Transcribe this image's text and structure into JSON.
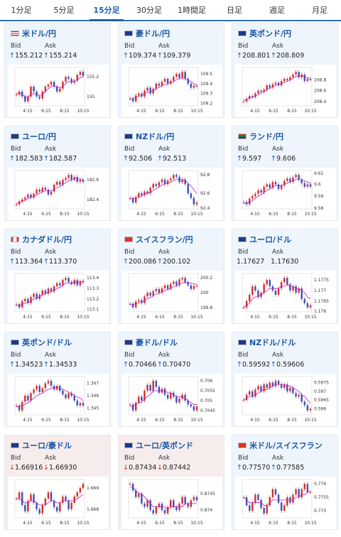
{
  "tabs": [
    {
      "label": "1分足",
      "active": false
    },
    {
      "label": "5分足",
      "active": false
    },
    {
      "label": "15分足",
      "active": true
    },
    {
      "label": "30分足",
      "active": false
    },
    {
      "label": "1時間足",
      "active": false
    },
    {
      "label": "日足",
      "active": false
    },
    {
      "label": "週足",
      "active": false
    },
    {
      "label": "月足",
      "active": false
    }
  ],
  "labels": {
    "bid": "Bid",
    "ask": "Ask"
  },
  "colors": {
    "accent": "#1e5fb4",
    "up": "#d32f2f",
    "down": "#3f51b5",
    "ma": "#c020c0",
    "card_up_bg": "#eef5fd",
    "card_down_bg": "#f7ecec"
  },
  "cards": [
    {
      "title": "米ドル/円",
      "flag": "us-flag",
      "dir": "up",
      "bid": "155.212",
      "ask": "155.214",
      "yticks": [
        "155.2",
        "155"
      ],
      "xticks": [
        "4:15",
        "6:15",
        "8:15",
        "10:15"
      ],
      "series": [
        155.02,
        155.05,
        155.0,
        154.95,
        155.0,
        155.1,
        155.05,
        155.0,
        154.98,
        155.05,
        155.1,
        155.12,
        155.15,
        155.1,
        155.05,
        155.08,
        155.15,
        155.2,
        155.18,
        155.14,
        155.16,
        155.22,
        155.25,
        155.21
      ],
      "ma": [
        155.03,
        155.04,
        155.02,
        155.0,
        154.99,
        155.02,
        155.03,
        155.02,
        155.01,
        155.02,
        155.05,
        155.08,
        155.1,
        155.11,
        155.1,
        155.09,
        155.1,
        155.13,
        155.15,
        155.15,
        155.16,
        155.17,
        155.19,
        155.2
      ]
    },
    {
      "title": "豪ドル/円",
      "flag": "au-flag",
      "dir": "up",
      "bid": "109.374",
      "ask": "109.379",
      "yticks": [
        "109.5",
        "109.4",
        "109.3",
        "109.2"
      ],
      "xticks": [
        "4:15",
        "6:15",
        "8:15",
        "10:15"
      ],
      "series": [
        109.25,
        109.22,
        109.28,
        109.3,
        109.27,
        109.33,
        109.36,
        109.3,
        109.35,
        109.4,
        109.38,
        109.42,
        109.45,
        109.4,
        109.43,
        109.47,
        109.5,
        109.46,
        109.52,
        109.45,
        109.4,
        109.36,
        109.38,
        109.37
      ],
      "ma": [
        109.24,
        109.25,
        109.26,
        109.27,
        109.28,
        109.3,
        109.31,
        109.32,
        109.33,
        109.35,
        109.36,
        109.38,
        109.39,
        109.4,
        109.41,
        109.42,
        109.44,
        109.45,
        109.46,
        109.45,
        109.44,
        109.42,
        109.4,
        109.39
      ]
    },
    {
      "title": "英ポンド/円",
      "flag": "uk-flag",
      "dir": "up",
      "bid": "208.801",
      "ask": "208.809",
      "yticks": [
        "208.8",
        "208.6",
        "208.4"
      ],
      "xticks": [
        "4:15",
        "6:15",
        "8:15",
        "10:15"
      ],
      "series": [
        208.4,
        208.45,
        208.5,
        208.48,
        208.55,
        208.6,
        208.58,
        208.62,
        208.7,
        208.66,
        208.72,
        208.75,
        208.7,
        208.78,
        208.82,
        208.8,
        208.85,
        208.9,
        208.95,
        208.85,
        208.9,
        208.78,
        208.82,
        208.8
      ],
      "ma": [
        208.42,
        208.44,
        208.46,
        208.48,
        208.5,
        208.53,
        208.56,
        208.58,
        208.62,
        208.64,
        208.67,
        208.7,
        208.71,
        208.73,
        208.76,
        208.78,
        208.8,
        208.83,
        208.86,
        208.87,
        208.88,
        208.86,
        208.84,
        208.83
      ]
    },
    {
      "title": "ユーロ/円",
      "flag": "eu-flag",
      "dir": "up",
      "bid": "182.583",
      "ask": "182.587",
      "yticks": [
        "182.6",
        "182.4"
      ],
      "xticks": [
        "4:15",
        "6:15",
        "8:15",
        "10:15"
      ],
      "series": [
        182.35,
        182.38,
        182.4,
        182.42,
        182.45,
        182.42,
        182.46,
        182.5,
        182.48,
        182.52,
        182.5,
        182.45,
        182.48,
        182.55,
        182.58,
        182.55,
        182.6,
        182.62,
        182.65,
        182.6,
        182.63,
        182.58,
        182.6,
        182.58
      ],
      "ma": [
        182.36,
        182.37,
        182.38,
        182.39,
        182.41,
        182.42,
        182.43,
        182.45,
        182.46,
        182.48,
        182.49,
        182.49,
        182.49,
        182.5,
        182.52,
        182.53,
        182.55,
        182.57,
        182.59,
        182.6,
        182.61,
        182.61,
        182.61,
        182.6
      ]
    },
    {
      "title": "NZドル/円",
      "flag": "nz-flag",
      "dir": "up",
      "bid": "92.506",
      "ask": "92.513",
      "yticks": [
        "92.8",
        "92.6",
        "92.4"
      ],
      "xticks": [
        "4:15",
        "6:15",
        "8:15",
        "10:15"
      ],
      "series": [
        92.55,
        92.5,
        92.56,
        92.6,
        92.58,
        92.62,
        92.6,
        92.66,
        92.7,
        92.68,
        92.72,
        92.75,
        92.7,
        92.74,
        92.76,
        92.8,
        92.78,
        92.72,
        92.75,
        92.7,
        92.6,
        92.55,
        92.48,
        92.5
      ],
      "ma": [
        92.54,
        92.54,
        92.55,
        92.56,
        92.57,
        92.59,
        92.6,
        92.61,
        92.63,
        92.65,
        92.67,
        92.69,
        92.7,
        92.71,
        92.72,
        92.74,
        92.75,
        92.75,
        92.75,
        92.74,
        92.71,
        92.68,
        92.64,
        92.6
      ]
    },
    {
      "title": "ランド/円",
      "flag": "za-flag",
      "dir": "up",
      "bid": "9.597",
      "ask": "9.606",
      "yticks": [
        "9.61",
        "9.6",
        "9.59",
        "9.58"
      ],
      "xticks": [
        "4:15",
        "6:15",
        "8:15",
        "10:15"
      ],
      "series": [
        9.585,
        9.583,
        9.588,
        9.59,
        9.592,
        9.595,
        9.593,
        9.598,
        9.6,
        9.597,
        9.602,
        9.6,
        9.596,
        9.599,
        9.603,
        9.605,
        9.602,
        9.606,
        9.608,
        9.604,
        9.601,
        9.598,
        9.6,
        9.598
      ],
      "ma": [
        9.584,
        9.584,
        9.585,
        9.586,
        9.588,
        9.59,
        9.591,
        9.593,
        9.595,
        9.596,
        9.598,
        9.599,
        9.599,
        9.599,
        9.6,
        9.601,
        9.602,
        9.603,
        9.604,
        9.604,
        9.604,
        9.603,
        9.602,
        9.601
      ]
    },
    {
      "title": "カナダドル/円",
      "flag": "ca-flag",
      "dir": "up",
      "bid": "113.364",
      "ask": "113.370",
      "yticks": [
        "113.4",
        "113.3",
        "113.2",
        "113.1"
      ],
      "xticks": [
        "4:15",
        "6:15",
        "8:15",
        "10:15"
      ],
      "series": [
        113.15,
        113.12,
        113.18,
        113.2,
        113.16,
        113.22,
        113.25,
        113.2,
        113.24,
        113.28,
        113.25,
        113.3,
        113.27,
        113.32,
        113.35,
        113.33,
        113.38,
        113.4,
        113.36,
        113.34,
        113.38,
        113.33,
        113.37,
        113.36
      ],
      "ma": [
        113.14,
        113.14,
        113.15,
        113.16,
        113.17,
        113.18,
        113.2,
        113.21,
        113.22,
        113.24,
        113.25,
        113.26,
        113.27,
        113.28,
        113.3,
        113.31,
        113.33,
        113.35,
        113.35,
        113.35,
        113.36,
        113.36,
        113.36,
        113.36
      ]
    },
    {
      "title": "スイスフラン/円",
      "flag": "ch-flag",
      "dir": "up",
      "bid": "200.086",
      "ask": "200.102",
      "yticks": [
        "200.2",
        "200",
        "199.8"
      ],
      "xticks": [
        "4:15",
        "6:15",
        "8:15",
        "10:15"
      ],
      "series": [
        199.85,
        199.8,
        199.88,
        199.9,
        199.86,
        199.95,
        200.0,
        199.96,
        200.02,
        200.05,
        200.0,
        200.06,
        200.1,
        200.05,
        200.12,
        200.15,
        200.1,
        200.18,
        200.2,
        200.14,
        200.1,
        200.05,
        200.09,
        200.09
      ],
      "ma": [
        199.84,
        199.84,
        199.85,
        199.86,
        199.87,
        199.89,
        199.92,
        199.93,
        199.96,
        199.98,
        199.99,
        200.01,
        200.03,
        200.04,
        200.06,
        200.08,
        200.09,
        200.11,
        200.13,
        200.14,
        200.14,
        200.13,
        200.12,
        200.11
      ]
    },
    {
      "title": "ユーロ/ドル",
      "flag": "eu-us-flag",
      "dir": "none",
      "bid": "1.17627",
      "ask": "1.17630",
      "yticks": [
        "1.1775",
        "1.177",
        "1.1765",
        "1.176"
      ],
      "xticks": [
        "4:15",
        "6:15",
        "8:15",
        "10:15"
      ],
      "series": [
        1.1762,
        1.1765,
        1.1768,
        1.1772,
        1.177,
        1.1767,
        1.1769,
        1.1773,
        1.1775,
        1.1772,
        1.177,
        1.1768,
        1.1771,
        1.1774,
        1.1776,
        1.1773,
        1.177,
        1.1772,
        1.1769,
        1.1771,
        1.1766,
        1.1764,
        1.1762,
        1.1763
      ],
      "ma": [
        1.1762,
        1.1763,
        1.1764,
        1.1766,
        1.1767,
        1.1767,
        1.1768,
        1.1769,
        1.177,
        1.1771,
        1.1771,
        1.1771,
        1.1771,
        1.1772,
        1.1772,
        1.1773,
        1.1772,
        1.1772,
        1.1771,
        1.1771,
        1.177,
        1.1769,
        1.1767,
        1.1766
      ]
    },
    {
      "title": "英ポンド/ドル",
      "flag": "uk-us-flag",
      "dir": "up",
      "bid": "1.34523",
      "ask": "1.34533",
      "yticks": [
        "1.347",
        "1.346",
        "1.345"
      ],
      "xticks": [
        "4:15",
        "6:15",
        "8:15",
        "10:15"
      ],
      "series": [
        1.3452,
        1.3448,
        1.3455,
        1.346,
        1.3456,
        1.3462,
        1.3465,
        1.3468,
        1.3463,
        1.3466,
        1.347,
        1.3472,
        1.3468,
        1.3465,
        1.3468,
        1.3464,
        1.3461,
        1.3458,
        1.3462,
        1.346,
        1.3456,
        1.3452,
        1.3454,
        1.3452
      ],
      "ma": [
        1.3451,
        1.3451,
        1.3452,
        1.3453,
        1.3454,
        1.3456,
        1.3458,
        1.346,
        1.3461,
        1.3462,
        1.3464,
        1.3465,
        1.3466,
        1.3466,
        1.3467,
        1.3466,
        1.3465,
        1.3464,
        1.3463,
        1.3462,
        1.346,
        1.3459,
        1.3458,
        1.3456
      ]
    },
    {
      "title": "豪ドル/ドル",
      "flag": "au-us-flag",
      "dir": "up",
      "bid": "0.70466",
      "ask": "0.70470",
      "yticks": [
        "0.706",
        "0.7055",
        "0.705",
        "0.7045"
      ],
      "xticks": [
        "4:15",
        "6:15",
        "8:15",
        "10:15"
      ],
      "series": [
        0.7048,
        0.7045,
        0.7049,
        0.7052,
        0.705,
        0.7055,
        0.7058,
        0.7055,
        0.706,
        0.7057,
        0.7054,
        0.7056,
        0.7053,
        0.7051,
        0.7054,
        0.7052,
        0.7049,
        0.7051,
        0.7053,
        0.705,
        0.7048,
        0.7047,
        0.7045,
        0.7047
      ],
      "ma": [
        0.7047,
        0.7047,
        0.7048,
        0.7049,
        0.7049,
        0.7051,
        0.7052,
        0.7053,
        0.7055,
        0.7055,
        0.7055,
        0.7055,
        0.7055,
        0.7054,
        0.7054,
        0.7053,
        0.7052,
        0.7052,
        0.7052,
        0.7051,
        0.705,
        0.7049,
        0.7048,
        0.7048
      ]
    },
    {
      "title": "NZドル/ドル",
      "flag": "nz-us-flag",
      "dir": "up",
      "bid": "0.59592",
      "ask": "0.59606",
      "yticks": [
        "0.5975",
        "0.597",
        "0.5965",
        "0.596"
      ],
      "xticks": [
        "4:15",
        "6:15",
        "8:15",
        "10:15"
      ],
      "series": [
        0.5965,
        0.5968,
        0.597,
        0.5967,
        0.5971,
        0.5973,
        0.597,
        0.5974,
        0.5972,
        0.5975,
        0.5973,
        0.5976,
        0.5974,
        0.5972,
        0.5974,
        0.597,
        0.5972,
        0.5969,
        0.5967,
        0.5968,
        0.5964,
        0.5962,
        0.5959,
        0.596
      ],
      "ma": [
        0.5965,
        0.5966,
        0.5967,
        0.5967,
        0.5968,
        0.5969,
        0.597,
        0.5971,
        0.5971,
        0.5972,
        0.5973,
        0.5974,
        0.5974,
        0.5974,
        0.5974,
        0.5973,
        0.5973,
        0.5972,
        0.5971,
        0.597,
        0.5968,
        0.5967,
        0.5965,
        0.5963
      ]
    },
    {
      "title": "ユーロ/豪ドル",
      "flag": "eu-au-flag",
      "dir": "down",
      "bid": "1.66916",
      "ask": "1.66930",
      "yticks": [
        "1.669",
        "1.668"
      ],
      "xticks": [
        "4:15",
        "6:15",
        "8:15",
        "10:15"
      ],
      "series": [
        1.6685,
        1.6688,
        1.6682,
        1.6679,
        1.6684,
        1.6687,
        1.6683,
        1.668,
        1.6678,
        1.6682,
        1.6685,
        1.6688,
        1.6684,
        1.6681,
        1.6679,
        1.6683,
        1.6686,
        1.6684,
        1.668,
        1.6683,
        1.6686,
        1.6688,
        1.669,
        1.6692
      ],
      "ma": [
        1.6685,
        1.6685,
        1.6684,
        1.6683,
        1.6683,
        1.6684,
        1.6684,
        1.6683,
        1.6682,
        1.6682,
        1.6682,
        1.6683,
        1.6684,
        1.6684,
        1.6683,
        1.6683,
        1.6684,
        1.6684,
        1.6684,
        1.6684,
        1.6684,
        1.6685,
        1.6686,
        1.6687
      ]
    },
    {
      "title": "ユーロ/英ポンド",
      "flag": "eu-uk-flag",
      "dir": "down",
      "bid": "0.87434",
      "ask": "0.87442",
      "yticks": [
        "0.8745",
        "0.874"
      ],
      "xticks": [
        "4:15",
        "6:15",
        "8:15",
        "10:15"
      ],
      "series": [
        0.8748,
        0.8746,
        0.8744,
        0.8745,
        0.8742,
        0.8741,
        0.8743,
        0.874,
        0.8739,
        0.8741,
        0.8742,
        0.874,
        0.8739,
        0.8741,
        0.8743,
        0.8741,
        0.874,
        0.8742,
        0.8744,
        0.8742,
        0.8741,
        0.8743,
        0.8744,
        0.8743
      ],
      "ma": [
        0.8747,
        0.8747,
        0.8746,
        0.8745,
        0.8745,
        0.8744,
        0.8743,
        0.8742,
        0.8741,
        0.8741,
        0.8741,
        0.8741,
        0.8741,
        0.874,
        0.8741,
        0.8741,
        0.8741,
        0.8741,
        0.8741,
        0.8742,
        0.8742,
        0.8742,
        0.8742,
        0.8742
      ]
    },
    {
      "title": "米ドル/スイスフラン",
      "flag": "us-ch-flag",
      "dir": "up",
      "bid": "0.77570",
      "ask": "0.77585",
      "yticks": [
        "0.776",
        "0.7755",
        "0.775"
      ],
      "xticks": [
        "4:15",
        "6:15",
        "8:15",
        "10:15"
      ],
      "series": [
        0.7755,
        0.7752,
        0.775,
        0.7753,
        0.7756,
        0.7754,
        0.7751,
        0.7749,
        0.7752,
        0.7755,
        0.7758,
        0.7756,
        0.7753,
        0.775,
        0.7752,
        0.7755,
        0.7753,
        0.7756,
        0.7758,
        0.7755,
        0.7758,
        0.776,
        0.7757,
        0.7757
      ],
      "ma": [
        0.7755,
        0.7754,
        0.7753,
        0.7753,
        0.7753,
        0.7753,
        0.7753,
        0.7752,
        0.7752,
        0.7753,
        0.7754,
        0.7754,
        0.7754,
        0.7754,
        0.7754,
        0.7754,
        0.7754,
        0.7754,
        0.7755,
        0.7755,
        0.7756,
        0.7756,
        0.7757,
        0.7757
      ]
    }
  ]
}
